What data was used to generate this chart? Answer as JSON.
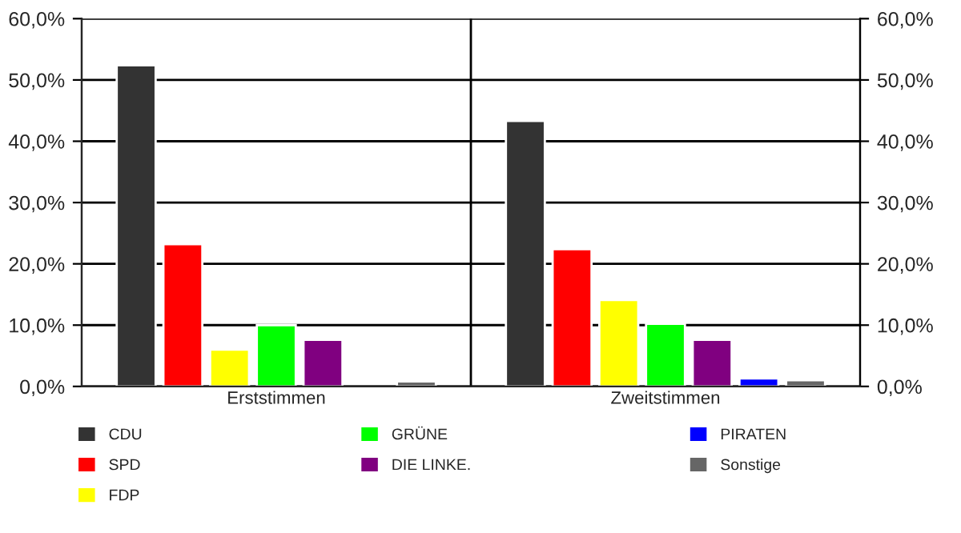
{
  "chart_data": {
    "type": "bar",
    "categories": [
      "Erststimmen",
      "Zweitstimmen"
    ],
    "series": [
      {
        "name": "CDU",
        "color": "#333333",
        "values": [
          52.4,
          43.3
        ]
      },
      {
        "name": "SPD",
        "color": "#ff0000",
        "values": [
          23.2,
          22.4
        ]
      },
      {
        "name": "FDP",
        "color": "#ffff00",
        "values": [
          6.0,
          14.1
        ]
      },
      {
        "name": "GRÜNE",
        "color": "#00ff00",
        "values": [
          10.0,
          10.2
        ]
      },
      {
        "name": "DIE LINKE.",
        "color": "#800080",
        "values": [
          7.6,
          7.6
        ]
      },
      {
        "name": "PIRATEN",
        "color": "#0000ff",
        "values": [
          null,
          1.3
        ]
      },
      {
        "name": "Sonstige",
        "color": "#666666",
        "values": [
          0.8,
          1.0
        ]
      }
    ],
    "ylim": [
      0,
      60
    ],
    "yticks": [
      {
        "value": 0,
        "label": "0,0%"
      },
      {
        "value": 10,
        "label": "10,0%"
      },
      {
        "value": 20,
        "label": "20,0%"
      },
      {
        "value": 30,
        "label": "30,0%"
      },
      {
        "value": 40,
        "label": "40,0%"
      },
      {
        "value": 50,
        "label": "50,0%"
      },
      {
        "value": 60,
        "label": "60,0%"
      }
    ],
    "y2lim": [
      0,
      60
    ],
    "y2ticks": [
      {
        "value": 0,
        "label": "0,0%"
      },
      {
        "value": 10,
        "label": "10,0%"
      },
      {
        "value": 20,
        "label": "20,0%"
      },
      {
        "value": 30,
        "label": "30,0%"
      },
      {
        "value": 40,
        "label": "40,0%"
      },
      {
        "value": 50,
        "label": "50,0%"
      },
      {
        "value": 60,
        "label": "60,0%"
      }
    ],
    "grid": "y",
    "legend": "bottom"
  }
}
